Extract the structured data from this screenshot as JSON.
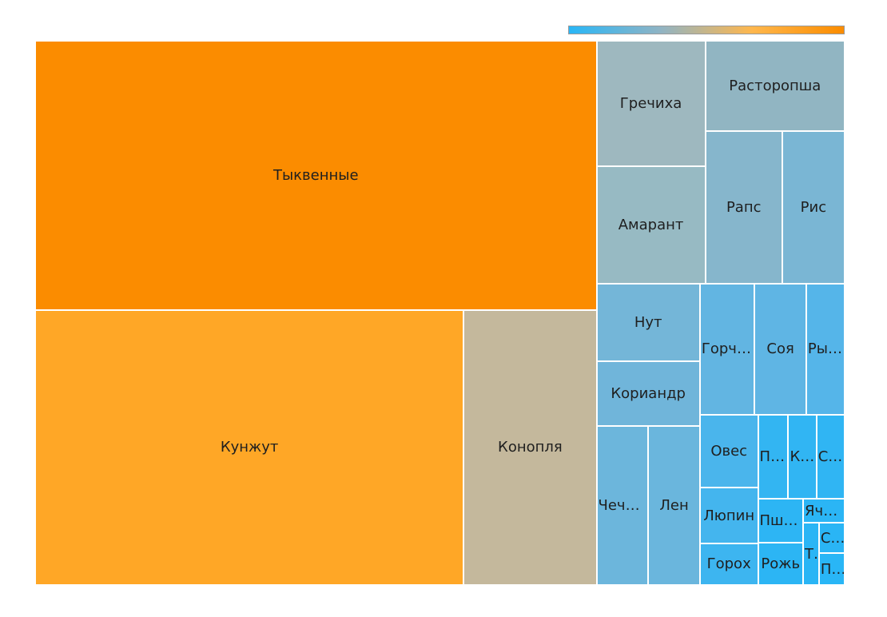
{
  "colors": {
    "scale": [
      "#29b6f6",
      "#90b4c4",
      "#ffb74d",
      "#fb8c00"
    ]
  },
  "chart_data": {
    "type": "treemap",
    "title": "",
    "color_scale": {
      "min_color": "#29b6f6",
      "max_color": "#fb8c00"
    },
    "items": [
      {
        "label": "Тыквенные",
        "value": 342,
        "color": "#fb8c00"
      },
      {
        "label": "Кунжут",
        "value": 252,
        "color": "#ffa726"
      },
      {
        "label": "Конопля",
        "value": 108,
        "color": "#c4b89c"
      },
      {
        "label": "Гречиха",
        "value": 74,
        "color": "#9eb8bf"
      },
      {
        "label": "Амарант",
        "value": 69,
        "color": "#97bac3"
      },
      {
        "label": "Расторопша",
        "value": 65,
        "color": "#91b5c2"
      },
      {
        "label": "Рапс",
        "value": 61,
        "color": "#86b6cc"
      },
      {
        "label": "Рис",
        "value": 50,
        "color": "#7ab6d4"
      },
      {
        "label": "Нут",
        "value": 47,
        "color": "#74b6d8"
      },
      {
        "label": "Кориандр",
        "value": 39,
        "color": "#70b5da"
      },
      {
        "label": "Чечевица",
        "value": 35,
        "color": "#6cb6dc"
      },
      {
        "label": "Лен",
        "value": 35,
        "color": "#6ab6dd"
      },
      {
        "label": "Горчица",
        "value": 35,
        "color": "#62b5e2"
      },
      {
        "label": "Соя",
        "value": 33,
        "color": "#5fb5e4"
      },
      {
        "label": "Рыжик",
        "value": 25,
        "color": "#55b5e9"
      },
      {
        "label": "Овес",
        "value": 21,
        "color": "#4ab5ec"
      },
      {
        "label": "Люпин",
        "value": 16,
        "color": "#44b5ee"
      },
      {
        "label": "Горох",
        "value": 12,
        "color": "#3db5f0"
      },
      {
        "label": "Просо",
        "value": 14,
        "color": "#33b5f2"
      },
      {
        "label": "Кукуруза",
        "value": 13,
        "color": "#31b5f3"
      },
      {
        "label": "Сорго",
        "value": 12,
        "color": "#30b5f3"
      },
      {
        "label": "Пшеница",
        "value": 7,
        "color": "#2db5f4"
      },
      {
        "label": "Рожь",
        "value": 6,
        "color": "#2cb5f4"
      },
      {
        "label": "Ячмень",
        "value": 5,
        "color": "#2bb5f5"
      },
      {
        "label": "Тритикале",
        "value": 3,
        "color": "#2ab5f5"
      },
      {
        "label": "Сафлор",
        "value": 3,
        "color": "#2ab5f5"
      },
      {
        "label": "Подсолнечник",
        "value": 3,
        "color": "#29b6f6"
      }
    ]
  }
}
